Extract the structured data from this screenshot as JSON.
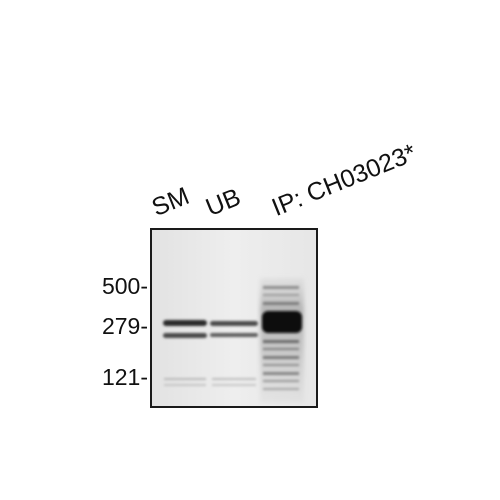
{
  "figure": {
    "lane_labels": [
      "SM",
      "UB",
      "IP: CH03023*"
    ],
    "mw_markers": [
      "500-",
      "279-",
      "121-"
    ]
  }
}
